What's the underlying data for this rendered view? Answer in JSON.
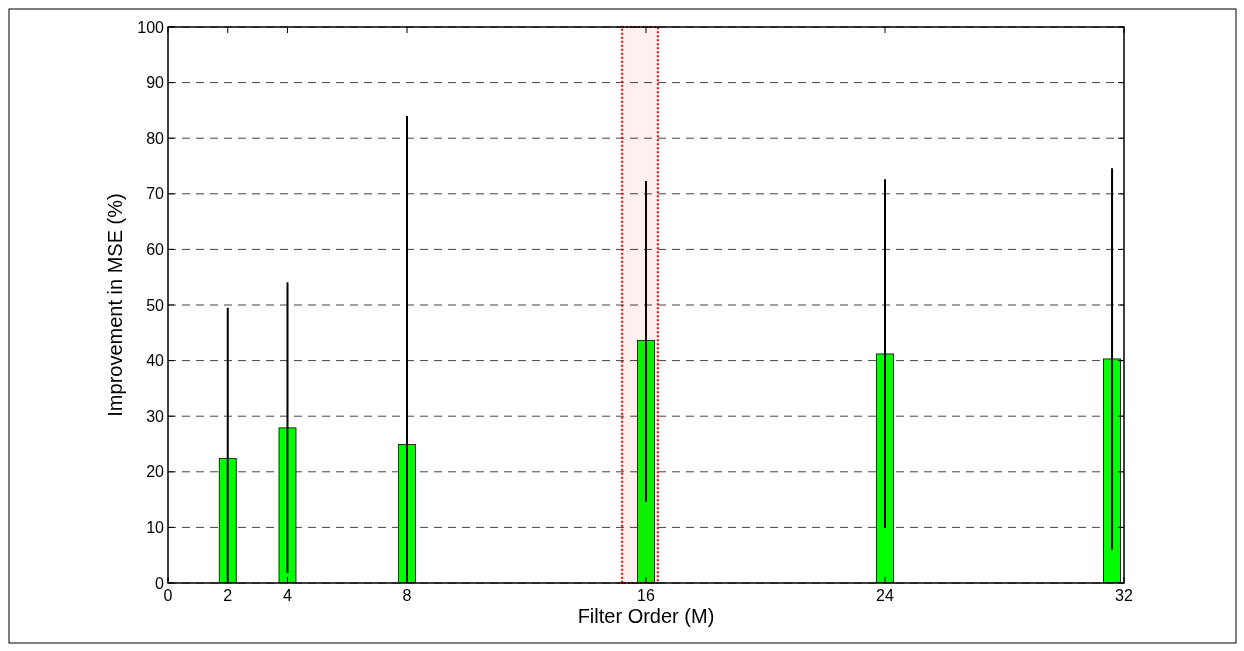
{
  "chart_data": {
    "type": "bar",
    "xlabel": "Filter Order (M)",
    "ylabel": "Improvement in MSE (%)",
    "x": [
      2,
      4,
      8,
      16,
      24,
      31.6
    ],
    "series": [
      {
        "color": "#00ff00",
        "values": [
          22.4,
          27.9,
          24.9,
          43.6,
          41.2,
          40.3
        ],
        "errors": [
          [
            0,
            49.5
          ],
          [
            1.8,
            54.1
          ],
          [
            0,
            84.0
          ],
          [
            14.6,
            72.3
          ],
          [
            9.9,
            72.6
          ],
          [
            6.0,
            74.6
          ]
        ]
      }
    ],
    "xlim": [
      0,
      32
    ],
    "xticks": [
      0,
      2,
      4,
      8,
      16,
      24,
      32
    ],
    "ylim": [
      0,
      100
    ],
    "yticks": [
      0,
      10,
      20,
      30,
      40,
      50,
      60,
      70,
      80,
      90,
      100
    ],
    "grid": "y",
    "bands": [
      {
        "axis": "x",
        "from": 15.2,
        "to": 16.4,
        "color": "#ff0000"
      }
    ]
  }
}
